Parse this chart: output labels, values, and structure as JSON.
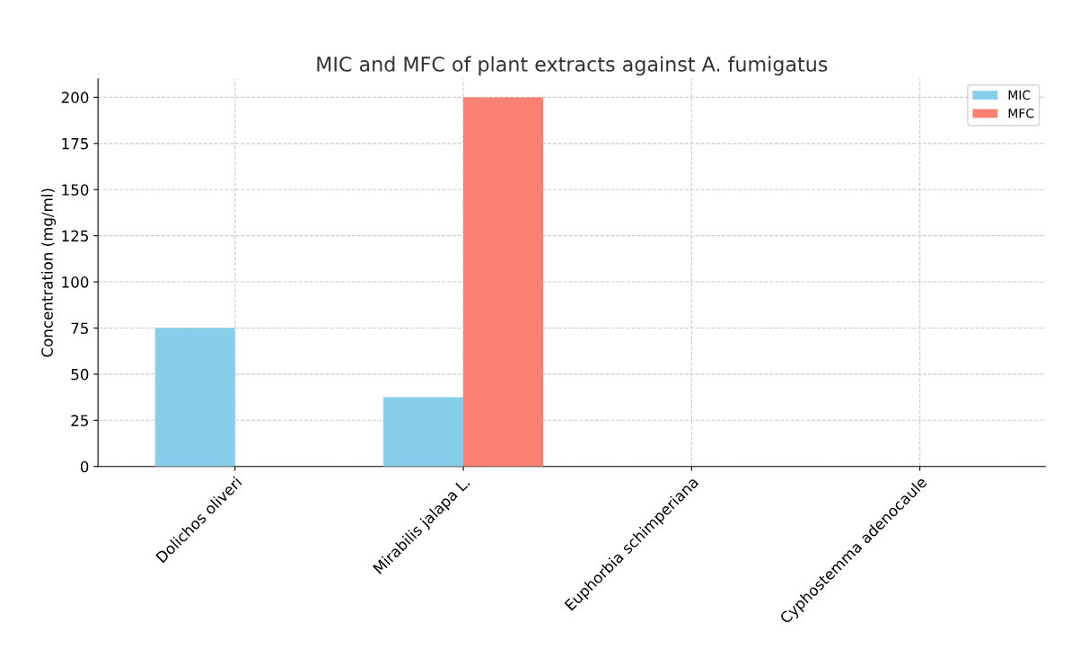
{
  "chart_data": {
    "type": "bar",
    "title": "MIC and MFC of plant extracts against A. fumigatus",
    "ylabel": "Concentration (mg/ml)",
    "categories": [
      "Dolichos oliveri",
      "Mirabilis jalapa L.",
      "Euphorbia schimperiana",
      "Cyphostemma adenocaule"
    ],
    "series": [
      {
        "name": "MIC",
        "color": "#87ceeb",
        "values": [
          75,
          37.5,
          0,
          0
        ]
      },
      {
        "name": "MFC",
        "color": "#fa8072",
        "values": [
          0,
          200,
          0,
          0
        ]
      }
    ],
    "ylim": [
      0,
      210
    ],
    "yticks": [
      0,
      25,
      50,
      75,
      100,
      125,
      150,
      175,
      200
    ],
    "grid": true,
    "legend": "top right"
  }
}
